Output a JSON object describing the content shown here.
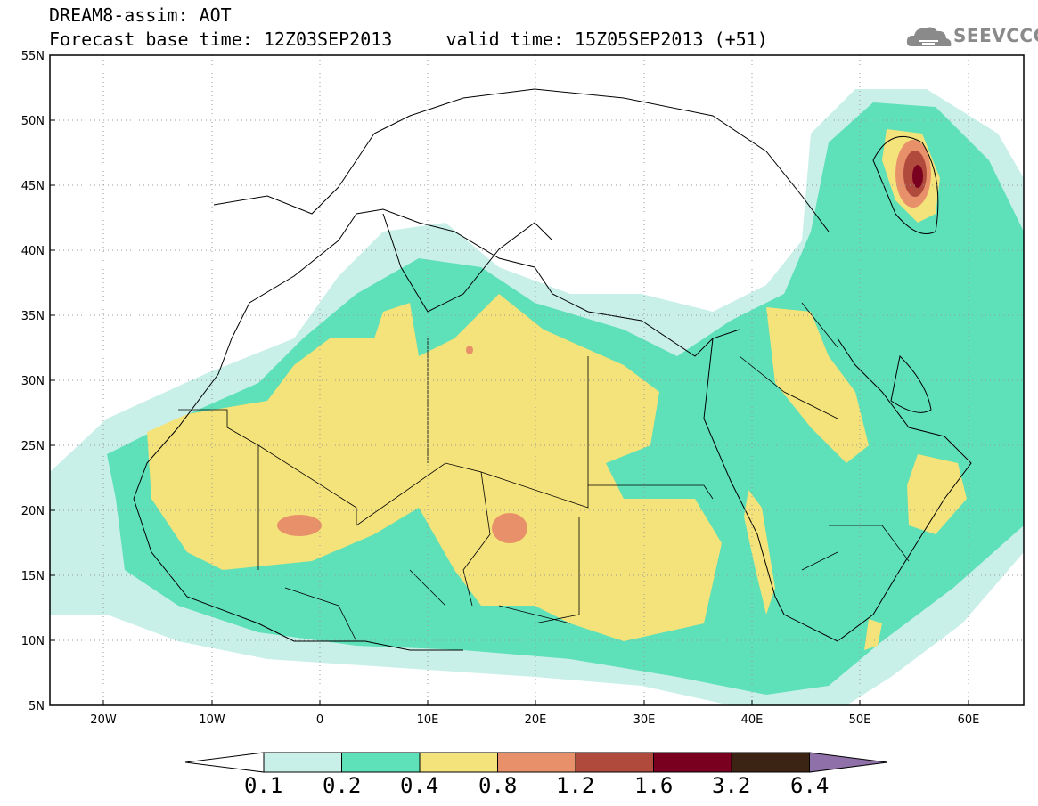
{
  "header": {
    "title_line1": "DREAM8-assim: AOT",
    "title_line2": "Forecast base time: 12Z03SEP2013     valid time: 15Z05SEP2013 (+51)",
    "logo_text": "SEEVCCC"
  },
  "map": {
    "lon_range": [
      -25,
      65
    ],
    "lat_range": [
      5,
      55
    ],
    "lat_labels": [
      "55N",
      "50N",
      "45N",
      "40N",
      "35N",
      "30N",
      "25N",
      "20N",
      "15N",
      "10N",
      "5N"
    ],
    "lon_labels": [
      "20W",
      "10W",
      "0",
      "10E",
      "20E",
      "30E",
      "40E",
      "50E",
      "60E"
    ],
    "layers": {
      "0.1-0.2": "#c8f0e8",
      "0.2-0.4": "#5ee0b8",
      "0.4-0.8": "#f4e27a",
      "0.8-1.2": "#e8906a",
      "1.2-1.6": "#b04a3c",
      "1.6-3.2": "#7a0020",
      "3.2-6.4": "#3c2414",
      ">6.4": "#9070a8"
    }
  },
  "colorbar": {
    "labels": [
      "0.1",
      "0.2",
      "0.4",
      "0.8",
      "1.2",
      "1.6",
      "3.2",
      "6.4"
    ],
    "colors": [
      "#c8f0e8",
      "#5ee0b8",
      "#f4e27a",
      "#e8906a",
      "#b04a3c",
      "#7a0020",
      "#3c2414"
    ],
    "over_color": "#9070a8",
    "under_color": "#ffffff"
  }
}
